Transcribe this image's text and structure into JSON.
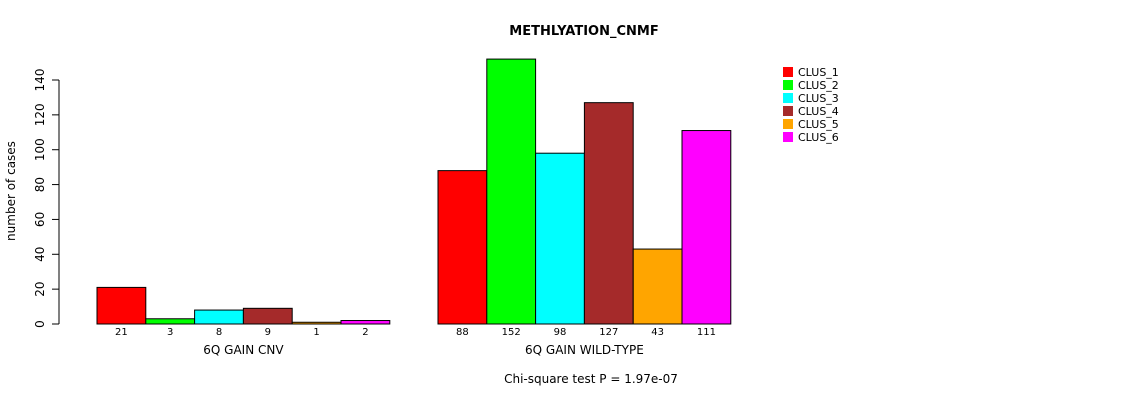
{
  "chart_data": {
    "type": "bar",
    "title": "METHLYATION_CNMF",
    "ylabel": "number of cases",
    "ylim": [
      0,
      140
    ],
    "yticks": [
      0,
      20,
      40,
      60,
      80,
      100,
      120,
      140
    ],
    "footer": "Chi-square test P = 1.97e-07",
    "legend": {
      "position": "top-right",
      "items": [
        {
          "name": "CLUS_1",
          "color": "#FF0000"
        },
        {
          "name": "CLUS_2",
          "color": "#00FF00"
        },
        {
          "name": "CLUS_3",
          "color": "#00FFFF"
        },
        {
          "name": "CLUS_4",
          "color": "#A52A2A"
        },
        {
          "name": "CLUS_5",
          "color": "#FFA500"
        },
        {
          "name": "CLUS_6",
          "color": "#FF00FF"
        }
      ]
    },
    "groups": [
      {
        "label": "6Q GAIN CNV",
        "values": [
          21,
          3,
          8,
          9,
          1,
          2
        ],
        "value_labels": [
          "21",
          "3",
          "8",
          "9",
          "1",
          "2"
        ]
      },
      {
        "label": "6Q GAIN WILD-TYPE",
        "values": [
          88,
          152,
          98,
          127,
          43,
          111
        ],
        "value_labels": [
          "88",
          "152",
          "98",
          "127",
          "43",
          "111"
        ]
      }
    ]
  }
}
